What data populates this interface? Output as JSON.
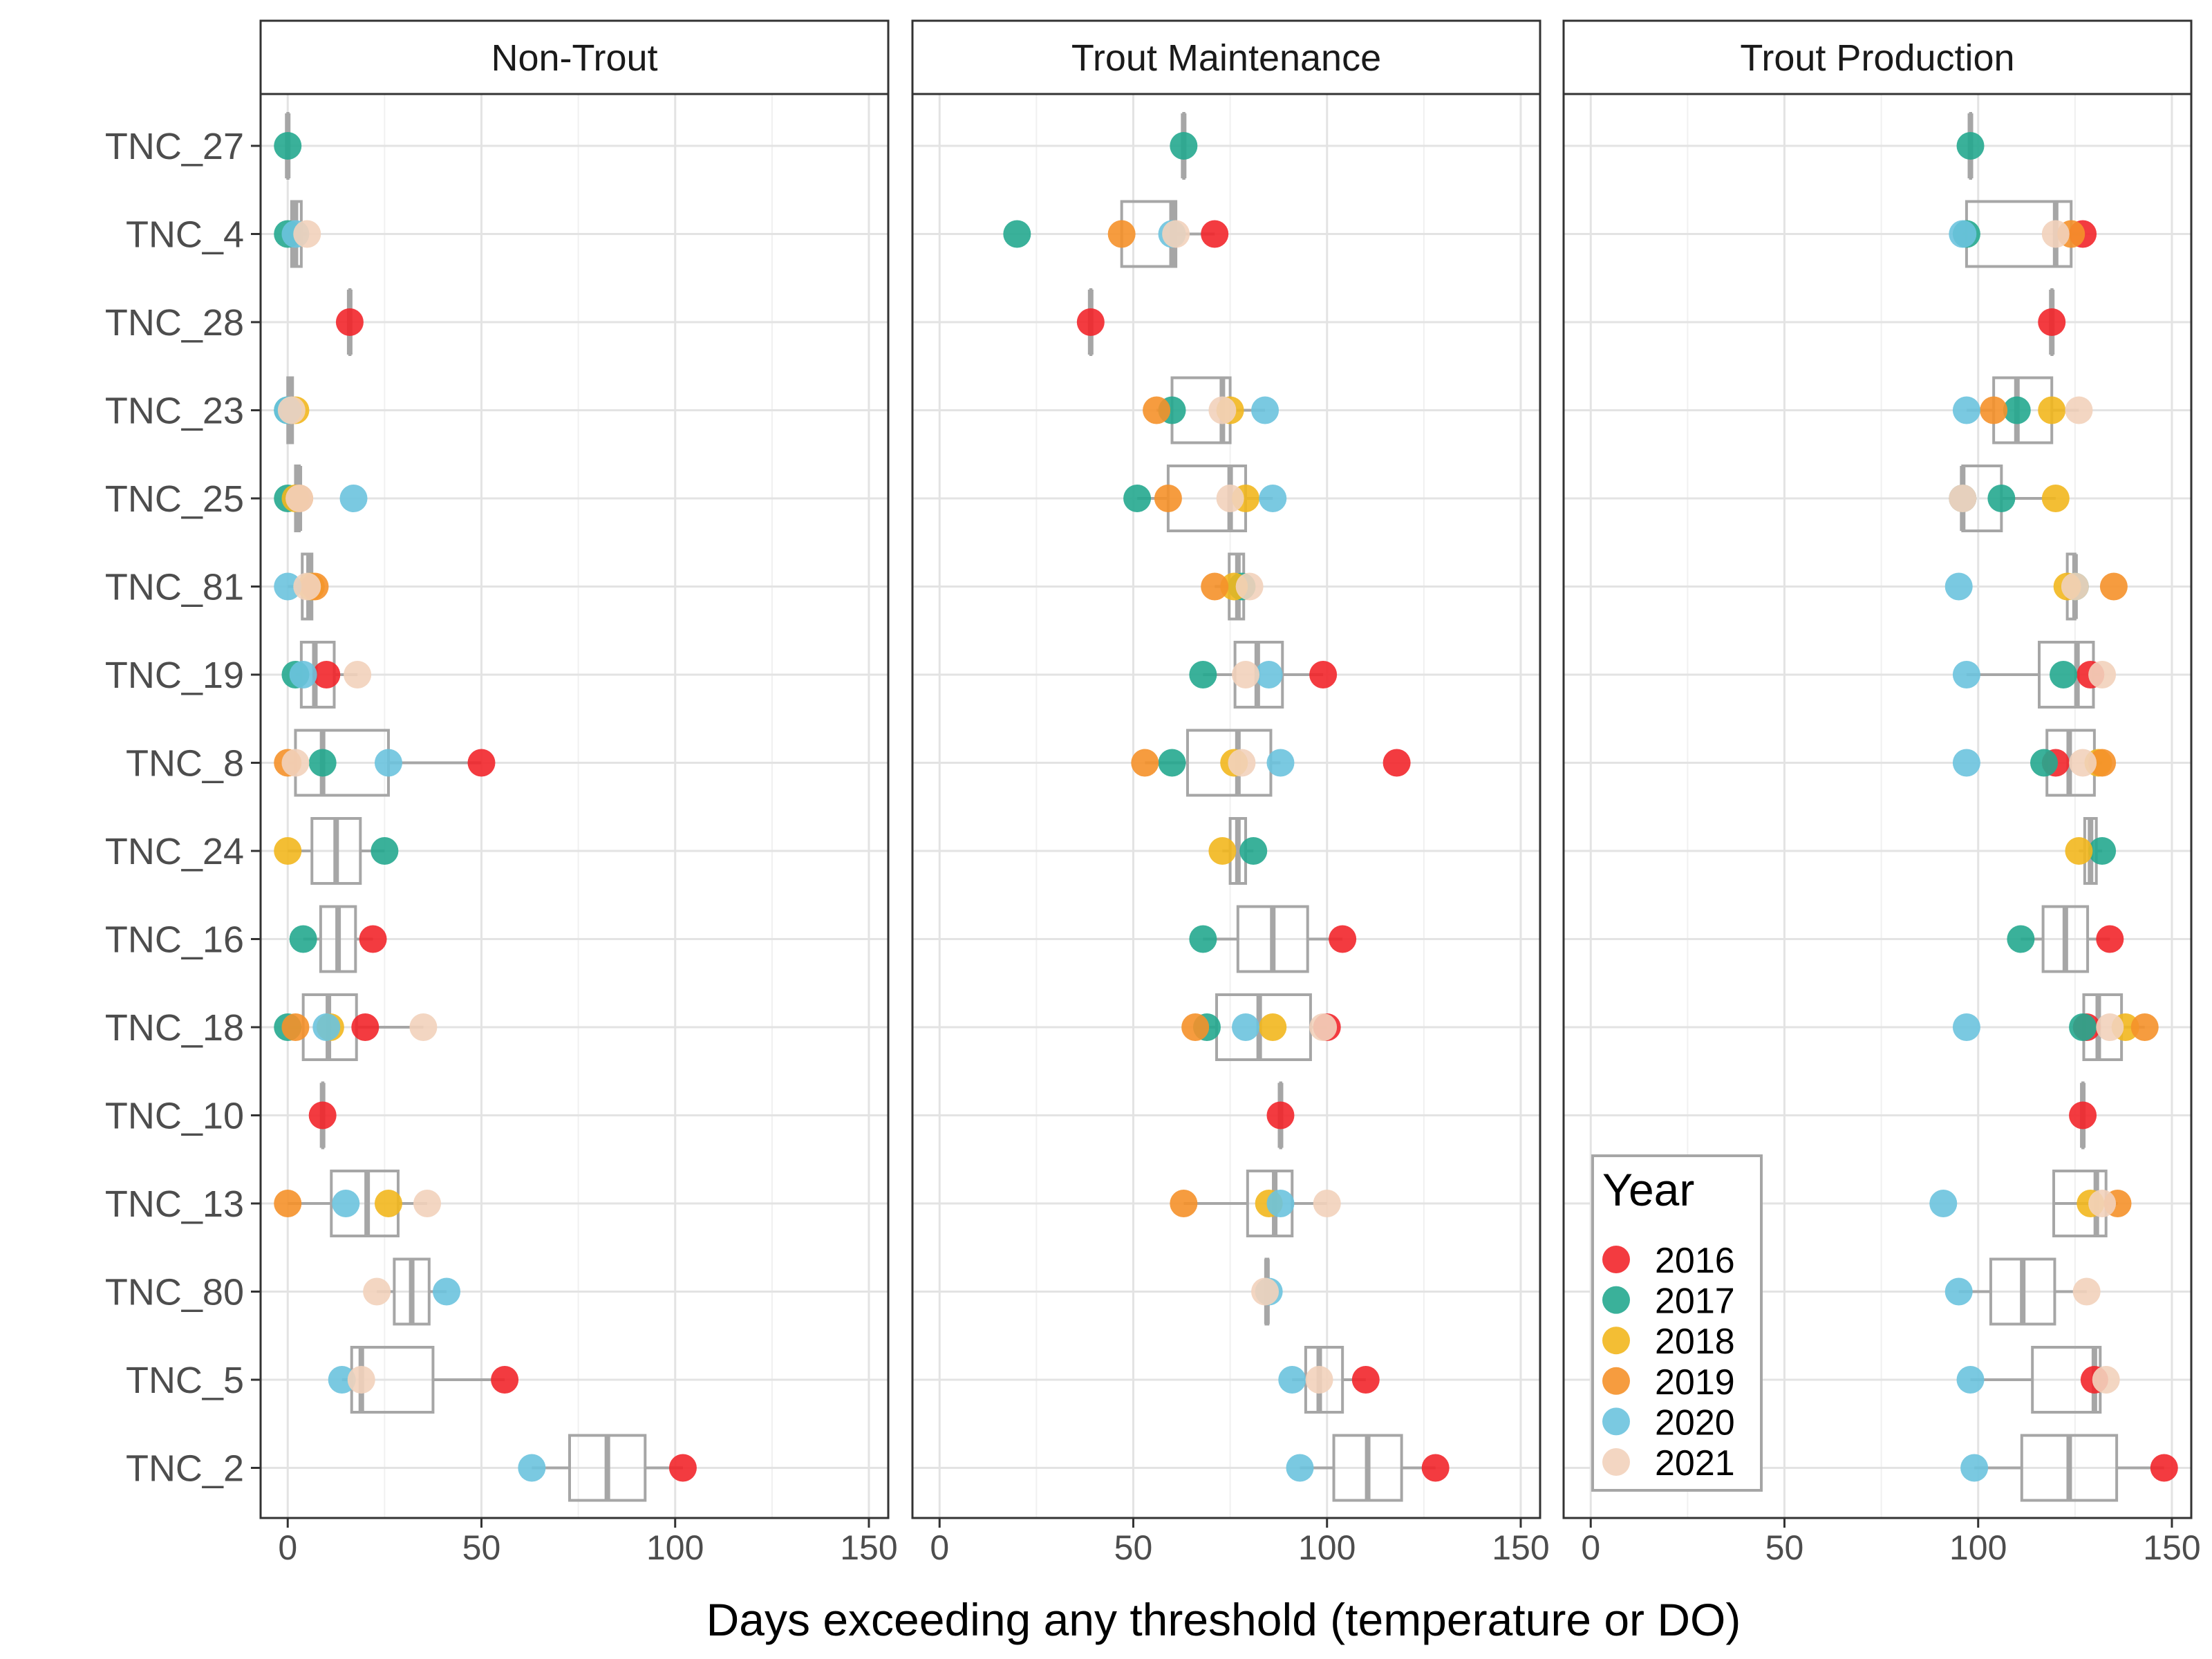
{
  "chart_data": {
    "type": "box-strip",
    "xlabel": "Days exceeding any threshold (temperature or DO)",
    "ylabel": "",
    "xlim": [
      -7,
      155
    ],
    "xticks": [
      0,
      50,
      100,
      150
    ],
    "grid": true,
    "legend": {
      "title": "Year",
      "placement": "bottom-right of Trout Production panel"
    },
    "sites": [
      "TNC_27",
      "TNC_4",
      "TNC_28",
      "TNC_23",
      "TNC_25",
      "TNC_81",
      "TNC_19",
      "TNC_8",
      "TNC_24",
      "TNC_16",
      "TNC_18",
      "TNC_10",
      "TNC_13",
      "TNC_80",
      "TNC_5",
      "TNC_2"
    ],
    "years": [
      "2016",
      "2017",
      "2018",
      "2019",
      "2020",
      "2021"
    ],
    "colors": {
      "2016": "#f2262b",
      "2017": "#25a98f",
      "2018": "#f2b71e",
      "2019": "#f5912a",
      "2020": "#6cc3de",
      "2021": "#f2d2bb",
      "box": "#a6a6a6"
    },
    "panels": [
      {
        "name": "Non-Trout",
        "points": {
          "TNC_27": {
            "2017": 0
          },
          "TNC_4": {
            "2017": 0,
            "2020": 2,
            "2021": 5
          },
          "TNC_28": {
            "2016": 16
          },
          "TNC_23": {
            "2017": 0,
            "2018": 2,
            "2020": 0,
            "2021": 1
          },
          "TNC_25": {
            "2017": 0,
            "2018": 2,
            "2019": 3,
            "2020": 17,
            "2021": 3
          },
          "TNC_81": {
            "2018": 6,
            "2019": 7,
            "2020": 0,
            "2021": 5
          },
          "TNC_19": {
            "2016": 10,
            "2017": 2,
            "2020": 4,
            "2021": 18
          },
          "TNC_8": {
            "2016": 50,
            "2017": 9,
            "2019": 0,
            "2020": 26,
            "2021": 2
          },
          "TNC_24": {
            "2017": 25,
            "2018": 0
          },
          "TNC_16": {
            "2016": 22,
            "2017": 4
          },
          "TNC_18": {
            "2016": 20,
            "2017": 0,
            "2018": 11,
            "2019": 2,
            "2020": 10,
            "2021": 35
          },
          "TNC_10": {
            "2016": 9
          },
          "TNC_13": {
            "2018": 26,
            "2019": 0,
            "2020": 15,
            "2021": 36
          },
          "TNC_80": {
            "2020": 41,
            "2021": 23
          },
          "TNC_5": {
            "2016": 56,
            "2020": 14,
            "2021": 19
          },
          "TNC_2": {
            "2016": 102,
            "2020": 63
          }
        }
      },
      {
        "name": "Trout Maintenance",
        "points": {
          "TNC_27": {
            "2017": 63
          },
          "TNC_4": {
            "2016": 71,
            "2017": 20,
            "2019": 47,
            "2020": 60,
            "2021": 61
          },
          "TNC_28": {
            "2016": 39
          },
          "TNC_23": {
            "2017": 60,
            "2018": 75,
            "2019": 56,
            "2020": 84,
            "2021": 73
          },
          "TNC_25": {
            "2017": 51,
            "2018": 79,
            "2019": 59,
            "2020": 86,
            "2021": 75
          },
          "TNC_81": {
            "2017": 78,
            "2018": 76,
            "2019": 71,
            "2021": 80
          },
          "TNC_19": {
            "2016": 99,
            "2017": 68,
            "2020": 85,
            "2021": 79
          },
          "TNC_8": {
            "2016": 118,
            "2017": 60,
            "2018": 76,
            "2019": 53,
            "2020": 88,
            "2021": 78
          },
          "TNC_24": {
            "2017": 81,
            "2018": 73
          },
          "TNC_16": {
            "2016": 104,
            "2017": 68
          },
          "TNC_18": {
            "2016": 100,
            "2017": 69,
            "2018": 86,
            "2019": 66,
            "2020": 79,
            "2021": 99
          },
          "TNC_10": {
            "2016": 88
          },
          "TNC_13": {
            "2018": 85,
            "2019": 63,
            "2020": 88,
            "2021": 100
          },
          "TNC_80": {
            "2020": 85,
            "2021": 84
          },
          "TNC_5": {
            "2016": 110,
            "2020": 91,
            "2021": 98
          },
          "TNC_2": {
            "2016": 128,
            "2020": 93
          }
        }
      },
      {
        "name": "Trout Production",
        "points": {
          "TNC_27": {
            "2017": 98
          },
          "TNC_4": {
            "2016": 127,
            "2017": 97,
            "2019": 124,
            "2020": 96,
            "2021": 120
          },
          "TNC_28": {
            "2016": 119
          },
          "TNC_23": {
            "2017": 110,
            "2018": 119,
            "2019": 104,
            "2020": 97,
            "2021": 126
          },
          "TNC_25": {
            "2017": 106,
            "2018": 120,
            "2019": 96,
            "2020": 96,
            "2021": 96
          },
          "TNC_81": {
            "2017": 125,
            "2018": 123,
            "2019": 135,
            "2020": 95,
            "2021": 125
          },
          "TNC_19": {
            "2016": 129,
            "2017": 122,
            "2020": 97,
            "2021": 132
          },
          "TNC_8": {
            "2016": 120,
            "2017": 117,
            "2018": 131,
            "2019": 132,
            "2020": 97,
            "2021": 127
          },
          "TNC_24": {
            "2017": 132,
            "2018": 126
          },
          "TNC_16": {
            "2016": 134,
            "2017": 111
          },
          "TNC_18": {
            "2016": 128,
            "2017": 127,
            "2018": 138,
            "2019": 143,
            "2020": 97,
            "2021": 134
          },
          "TNC_10": {
            "2016": 127
          },
          "TNC_13": {
            "2018": 129,
            "2019": 136,
            "2020": 91,
            "2021": 132
          },
          "TNC_80": {
            "2020": 95,
            "2021": 128
          },
          "TNC_5": {
            "2016": 130,
            "2020": 98,
            "2021": 133
          },
          "TNC_2": {
            "2016": 148,
            "2020": 99
          }
        }
      }
    ]
  }
}
